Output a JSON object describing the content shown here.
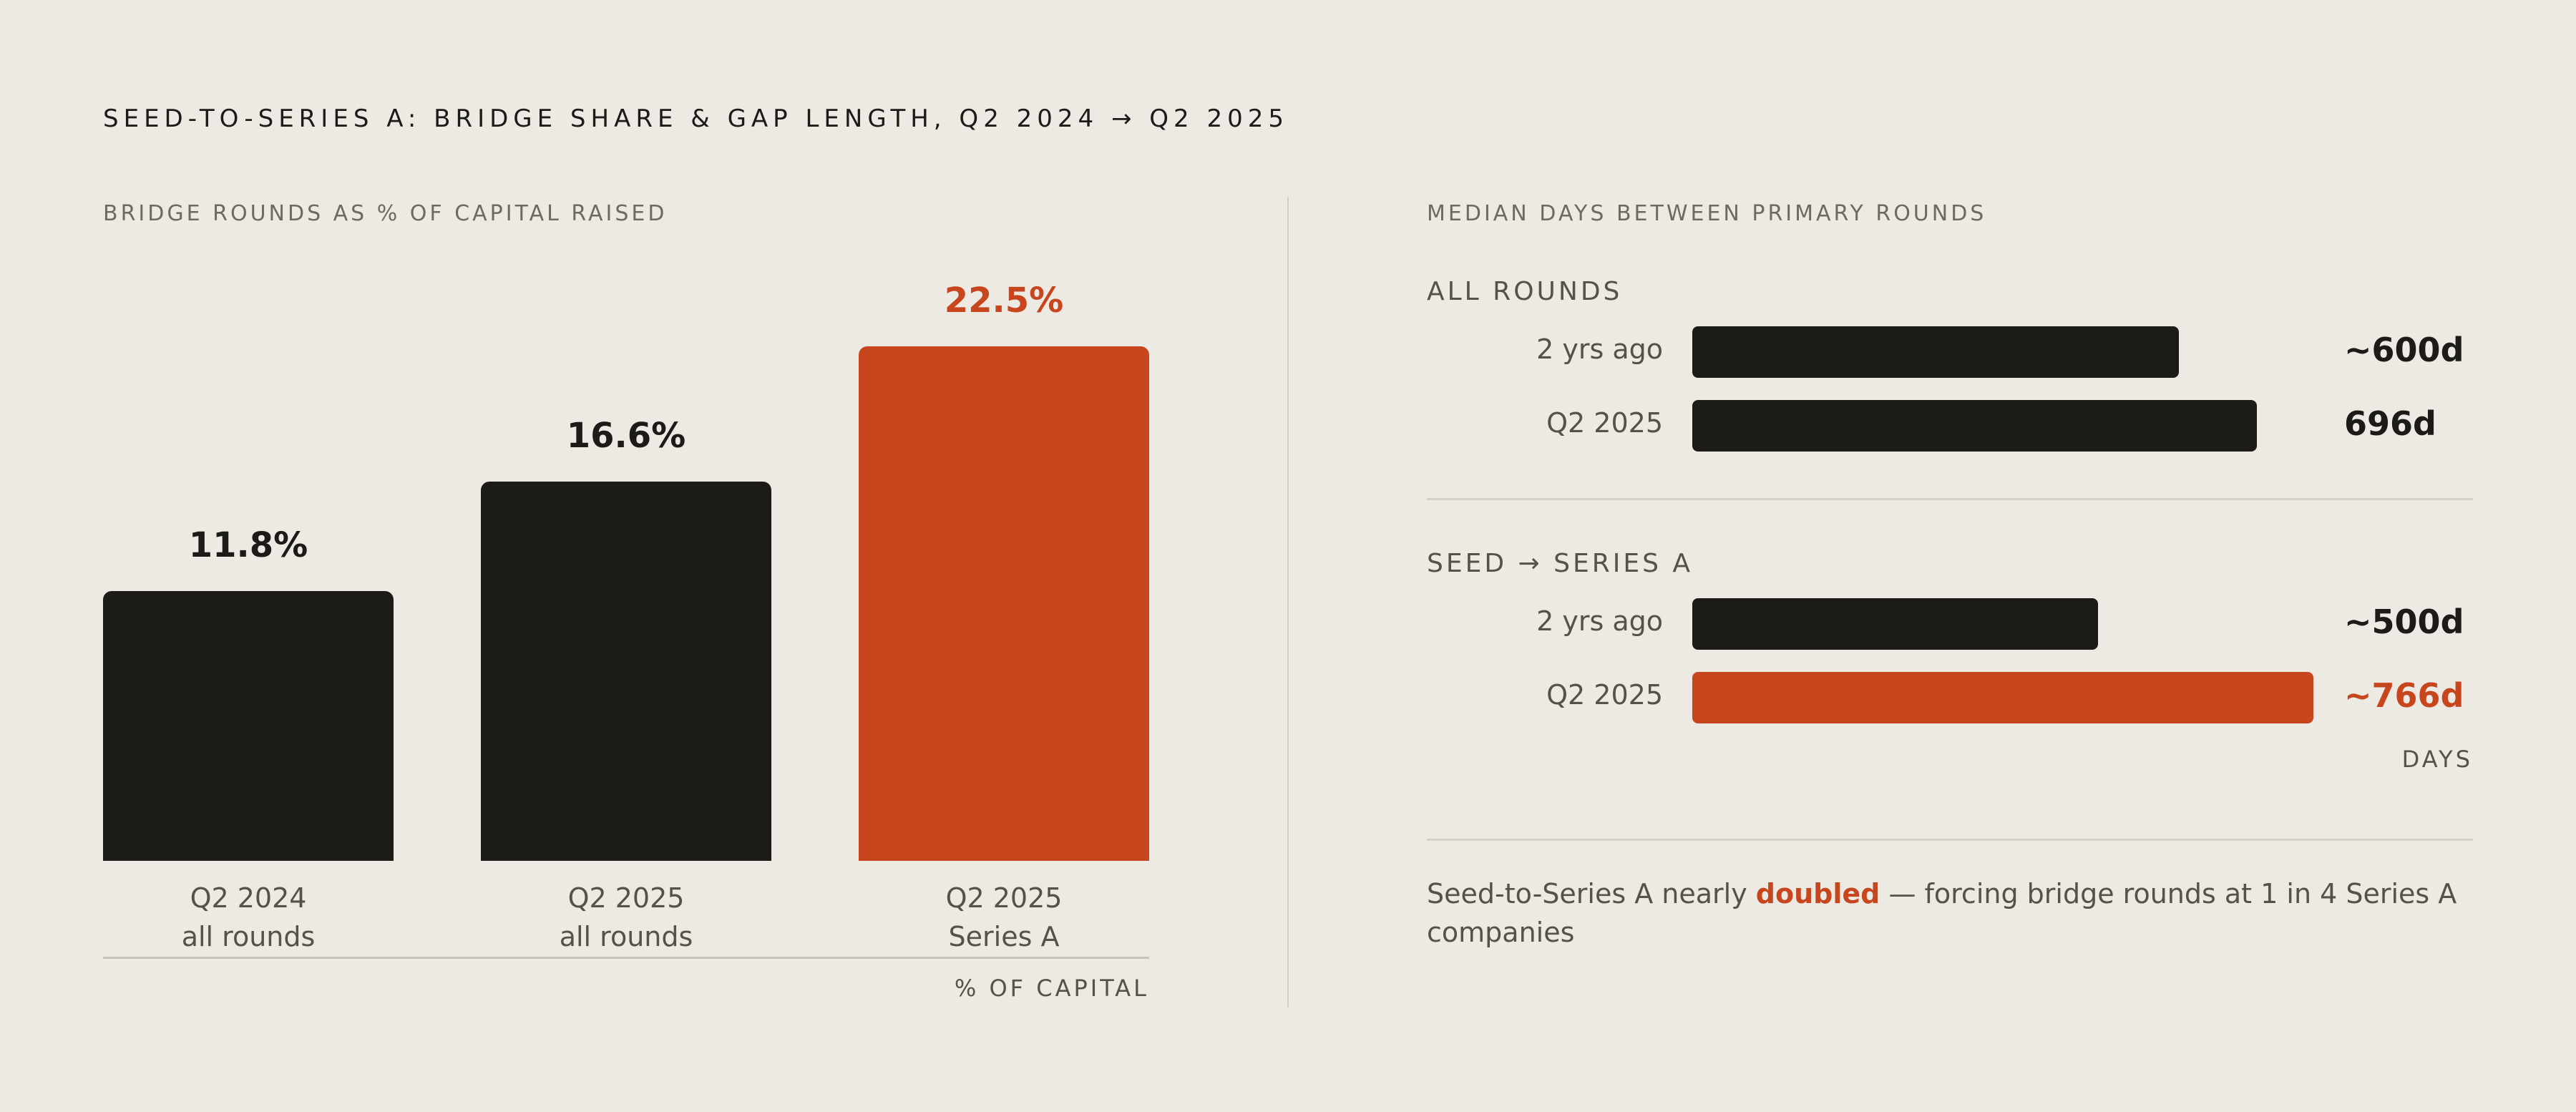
{
  "title": "SEED-TO-SERIES A: BRIDGE SHARE & GAP LENGTH, Q2 2024 → Q2 2025",
  "colors": {
    "background": "#edeae4",
    "dark": "#1c1b18",
    "accent": "#c7461d",
    "muted": "#55524c"
  },
  "chart_data": [
    {
      "type": "bar",
      "title": "BRIDGE ROUNDS AS % OF CAPITAL RAISED",
      "ylabel": "% OF CAPITAL",
      "categories": [
        [
          "Q2 2024",
          "all rounds"
        ],
        [
          "Q2 2025",
          "all rounds"
        ],
        [
          "Q2 2025",
          "Series A"
        ]
      ],
      "values": [
        11.8,
        16.6,
        22.5
      ],
      "value_labels": [
        "11.8%",
        "16.6%",
        "22.5%"
      ],
      "highlight_index": 2,
      "ylim": [
        0,
        22.5
      ],
      "grid": false
    },
    {
      "type": "bar",
      "orientation": "horizontal",
      "title": "MEDIAN DAYS BETWEEN PRIMARY ROUNDS",
      "xlabel": "DAYS",
      "groups": [
        {
          "label": "ALL ROUNDS",
          "rows": [
            {
              "label": "2 yrs ago",
              "value": 600,
              "value_label": "~600d",
              "highlight": false
            },
            {
              "label": "Q2 2025",
              "value": 696,
              "value_label": "696d",
              "highlight": false
            }
          ]
        },
        {
          "label": "SEED → SERIES A",
          "rows": [
            {
              "label": "2 yrs ago",
              "value": 500,
              "value_label": "~500d",
              "highlight": false
            },
            {
              "label": "Q2 2025",
              "value": 766,
              "value_label": "~766d",
              "highlight": true
            }
          ]
        }
      ],
      "xlim": [
        0,
        766
      ],
      "grid": false
    }
  ],
  "note": {
    "before": "Seed-to-Series A nearly ",
    "emphasis": "doubled",
    "after": " — forcing bridge rounds at 1 in 4 Series A companies"
  }
}
